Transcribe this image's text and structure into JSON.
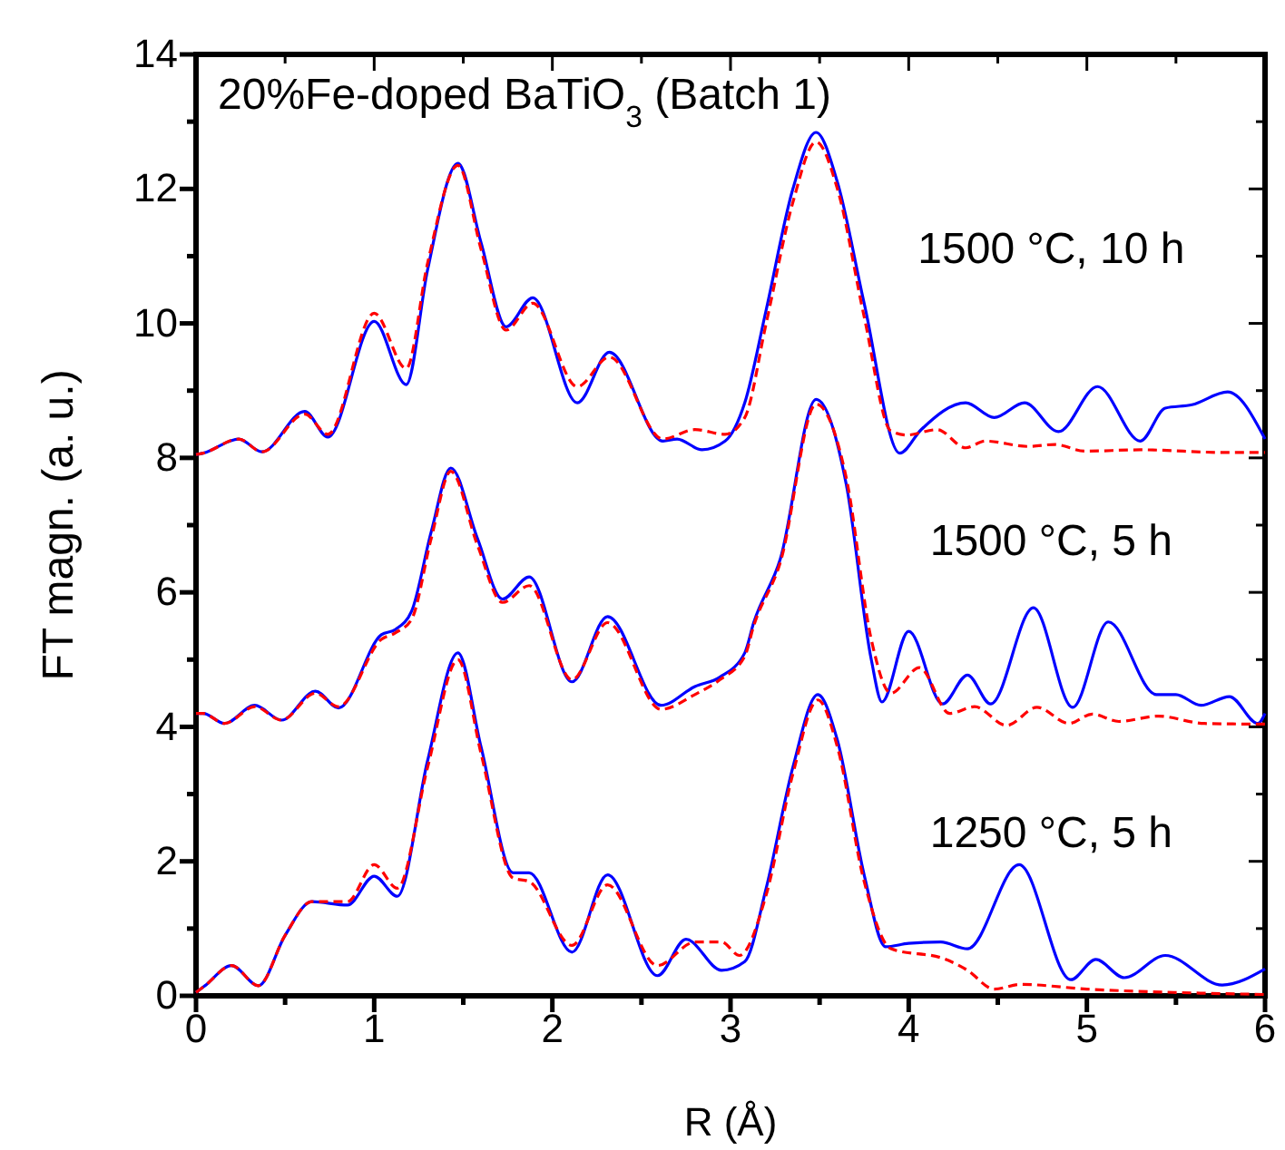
{
  "chart_data": {
    "type": "line",
    "title": "20%Fe-doped BaTiO$_{3}$ (Batch 1)",
    "xlabel": "R (Å)",
    "ylabel": "FT magn. (a. u.)",
    "xlim": [
      0,
      6
    ],
    "ylim": [
      0,
      14
    ],
    "xticks": [
      0,
      {
        "value": 0.5,
        "label": null
      },
      1,
      {
        "value": 1.5,
        "label": null
      },
      2,
      {
        "value": 2.5,
        "label": null
      },
      3,
      {
        "value": 3.5,
        "label": null
      },
      4,
      {
        "value": 4.5,
        "label": null
      },
      5,
      {
        "value": 5.5,
        "label": null
      },
      6
    ],
    "yticks": [
      0,
      {
        "value": 1,
        "label": null
      },
      2,
      {
        "value": 3,
        "label": null
      },
      4,
      {
        "value": 5,
        "label": null
      },
      6,
      {
        "value": 7,
        "label": null
      },
      8,
      {
        "value": 9,
        "label": null
      },
      10,
      {
        "value": 11,
        "label": null
      },
      12,
      {
        "value": 13,
        "label": null
      },
      14
    ],
    "grid": false,
    "marker": "none",
    "annotations": [
      "1500 °C, 10 h",
      "1500 °C, 5 h",
      "1250 °C, 5 h"
    ],
    "series": [
      {
        "color": "#0000ff",
        "line_style": "solid",
        "x": [
          0,
          0.04,
          0.24,
          0.37,
          0.61,
          0.74,
          1.0,
          1.18,
          1.3,
          1.47,
          1.6,
          1.74,
          1.89,
          2.14,
          2.32,
          2.62,
          2.7,
          2.84,
          2.97,
          3.08,
          3.2,
          3.35,
          3.48,
          3.6,
          3.75,
          3.95,
          4.07,
          4.32,
          4.48,
          4.65,
          4.84,
          5.06,
          5.3,
          5.44,
          5.59,
          5.79,
          6
        ],
        "values": [
          8.05,
          8.07,
          8.28,
          8.09,
          8.69,
          8.31,
          10.03,
          9.09,
          10.8,
          12.38,
          11.2,
          9.95,
          10.38,
          8.82,
          9.57,
          8.25,
          8.28,
          8.12,
          8.25,
          8.82,
          10.2,
          12.0,
          12.84,
          12.1,
          10.3,
          8.07,
          8.42,
          8.82,
          8.6,
          8.82,
          8.39,
          9.06,
          8.25,
          8.74,
          8.79,
          8.98,
          8.28
        ]
      },
      {
        "color": "#ff0000",
        "line_style": "dashed",
        "x": [
          0,
          0.04,
          0.24,
          0.37,
          0.61,
          0.74,
          1.0,
          1.18,
          1.3,
          1.47,
          1.6,
          1.74,
          1.89,
          2.14,
          2.32,
          2.62,
          2.8,
          2.97,
          3.08,
          3.2,
          3.35,
          3.48,
          3.6,
          3.75,
          3.9,
          3.99,
          4.16,
          4.32,
          4.43,
          4.67,
          4.82,
          4.99,
          5.3,
          5.78,
          6
        ],
        "values": [
          8.05,
          8.07,
          8.28,
          8.09,
          8.65,
          8.35,
          10.15,
          9.33,
          10.9,
          12.35,
          11.1,
          9.9,
          10.3,
          9.06,
          9.5,
          8.28,
          8.42,
          8.35,
          8.6,
          10.0,
          11.8,
          12.7,
          12.0,
          10.1,
          8.4,
          8.34,
          8.42,
          8.15,
          8.25,
          8.17,
          8.2,
          8.1,
          8.12,
          8.08,
          8.08
        ]
      },
      {
        "color": "#0000ff",
        "line_style": "solid",
        "x": [
          0,
          0.04,
          0.16,
          0.33,
          0.48,
          0.67,
          0.8,
          1.04,
          1.12,
          1.21,
          1.32,
          1.43,
          1.58,
          1.72,
          1.87,
          2.11,
          2.31,
          2.61,
          2.8,
          2.94,
          3.08,
          3.13,
          3.28,
          3.48,
          3.65,
          3.79,
          3.85,
          4.0,
          4.19,
          4.33,
          4.46,
          4.7,
          4.92,
          5.12,
          5.39,
          5.5,
          5.64,
          5.8,
          5.96,
          6
        ],
        "values": [
          4.2,
          4.2,
          4.05,
          4.32,
          4.1,
          4.53,
          4.28,
          5.37,
          5.45,
          5.72,
          6.9,
          7.85,
          6.8,
          5.9,
          6.23,
          4.67,
          5.64,
          4.32,
          4.6,
          4.74,
          5.1,
          5.55,
          6.5,
          8.87,
          7.6,
          5.0,
          4.37,
          5.42,
          4.34,
          4.77,
          4.34,
          5.77,
          4.29,
          5.56,
          4.48,
          4.48,
          4.32,
          4.45,
          4.05,
          4.2
        ]
      },
      {
        "color": "#ff0000",
        "line_style": "dashed",
        "x": [
          0,
          0.04,
          0.16,
          0.33,
          0.48,
          0.67,
          0.8,
          1.04,
          1.12,
          1.21,
          1.32,
          1.43,
          1.58,
          1.72,
          1.87,
          2.11,
          2.31,
          2.61,
          2.8,
          2.94,
          3.08,
          3.13,
          3.28,
          3.48,
          3.65,
          3.79,
          3.9,
          4.06,
          4.23,
          4.37,
          4.55,
          4.72,
          4.9,
          5.03,
          5.18,
          5.4,
          5.66,
          6
        ],
        "values": [
          4.2,
          4.2,
          4.05,
          4.3,
          4.1,
          4.5,
          4.3,
          5.3,
          5.4,
          5.6,
          6.8,
          7.8,
          6.7,
          5.85,
          6.1,
          4.7,
          5.55,
          4.26,
          4.48,
          4.7,
          5.05,
          5.5,
          6.45,
          8.8,
          7.7,
          5.3,
          4.5,
          4.88,
          4.2,
          4.3,
          4.02,
          4.29,
          4.05,
          4.19,
          4.08,
          4.16,
          4.05,
          4.04
        ]
      },
      {
        "color": "#0000ff",
        "line_style": "solid",
        "x": [
          0,
          0.05,
          0.2,
          0.35,
          0.5,
          0.65,
          0.85,
          1.0,
          1.13,
          1.3,
          1.47,
          1.6,
          1.78,
          1.87,
          2.11,
          2.31,
          2.59,
          2.75,
          2.95,
          3.08,
          3.2,
          3.35,
          3.49,
          3.6,
          3.75,
          3.87,
          4.0,
          4.18,
          4.33,
          4.62,
          4.91,
          5.05,
          5.21,
          5.44,
          5.76,
          6
        ],
        "values": [
          0.05,
          0.15,
          0.45,
          0.15,
          0.9,
          1.4,
          1.35,
          1.78,
          1.48,
          3.5,
          5.1,
          3.7,
          1.83,
          1.83,
          0.65,
          1.8,
          0.3,
          0.84,
          0.38,
          0.51,
          1.6,
          3.4,
          4.48,
          3.8,
          1.8,
          0.73,
          0.78,
          0.8,
          0.7,
          1.95,
          0.24,
          0.54,
          0.27,
          0.6,
          0.16,
          0.4
        ]
      },
      {
        "color": "#ff0000",
        "line_style": "dashed",
        "x": [
          0,
          0.05,
          0.2,
          0.35,
          0.5,
          0.65,
          0.85,
          1.0,
          1.13,
          1.3,
          1.47,
          1.6,
          1.78,
          1.87,
          2.11,
          2.31,
          2.59,
          2.8,
          2.95,
          3.05,
          3.2,
          3.35,
          3.49,
          3.6,
          3.75,
          3.9,
          4.2,
          4.33,
          4.48,
          4.63,
          5.0,
          5.5,
          6
        ],
        "values": [
          0.05,
          0.15,
          0.45,
          0.15,
          0.9,
          1.4,
          1.4,
          1.95,
          1.6,
          3.4,
          5.0,
          3.6,
          1.75,
          1.7,
          0.75,
          1.65,
          0.45,
          0.8,
          0.8,
          0.6,
          1.5,
          3.3,
          4.4,
          3.7,
          1.7,
          0.7,
          0.55,
          0.38,
          0.1,
          0.17,
          0.1,
          0.05,
          0.02
        ]
      }
    ]
  }
}
